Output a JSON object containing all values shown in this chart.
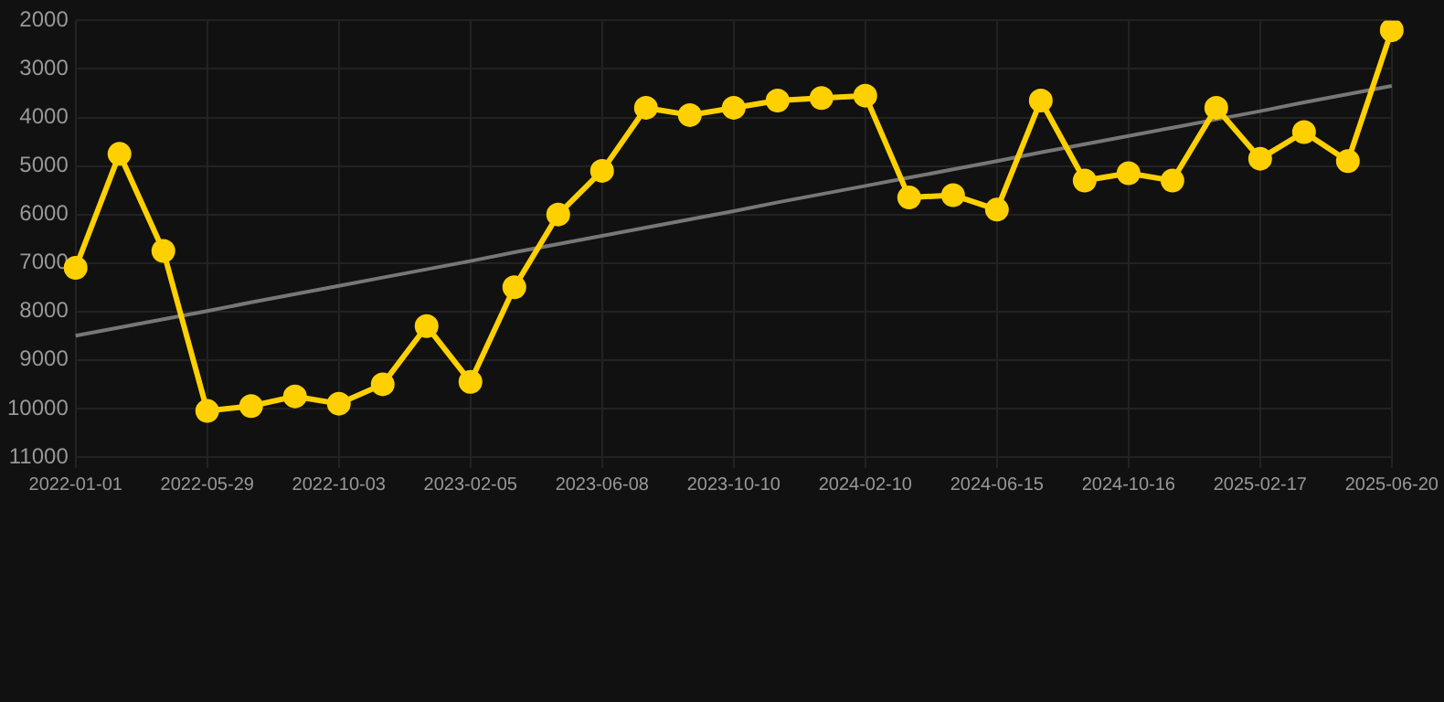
{
  "chart_data": {
    "type": "line",
    "categories": [
      "2022-01-01",
      null,
      null,
      "2022-05-29",
      null,
      null,
      "2022-10-03",
      null,
      null,
      "2023-02-05",
      null,
      null,
      "2023-06-08",
      null,
      null,
      "2023-10-10",
      null,
      null,
      "2024-02-10",
      null,
      null,
      "2024-06-15",
      null,
      null,
      "2024-10-16",
      null,
      null,
      "2025-02-17",
      null,
      null,
      "2025-06-20"
    ],
    "series": [
      {
        "type": "line",
        "color": "#ffd000",
        "marker": "circle",
        "values": [
          7100,
          4750,
          6750,
          10050,
          9950,
          9750,
          9900,
          9500,
          8300,
          9450,
          7500,
          6000,
          5100,
          3800,
          3950,
          3800,
          3650,
          3600,
          3550,
          5650,
          5600,
          5900,
          3650,
          5300,
          5150,
          5300,
          3800,
          4850,
          4300,
          4900,
          2200
        ]
      },
      {
        "type": "line",
        "color": "#777777",
        "marker": "none",
        "values": [
          8500,
          8330,
          8160,
          7990,
          7810,
          7640,
          7470,
          7300,
          7130,
          6960,
          6780,
          6610,
          6440,
          6270,
          6100,
          5930,
          5750,
          5580,
          5410,
          5240,
          5070,
          4900,
          4720,
          4550,
          4380,
          4210,
          4040,
          3870,
          3690,
          3520,
          3350
        ]
      }
    ],
    "ylim": [
      11000,
      2000
    ],
    "yticks": [
      2000,
      3000,
      4000,
      5000,
      6000,
      7000,
      8000,
      9000,
      10000,
      11000
    ],
    "grid": true,
    "legend": false
  }
}
